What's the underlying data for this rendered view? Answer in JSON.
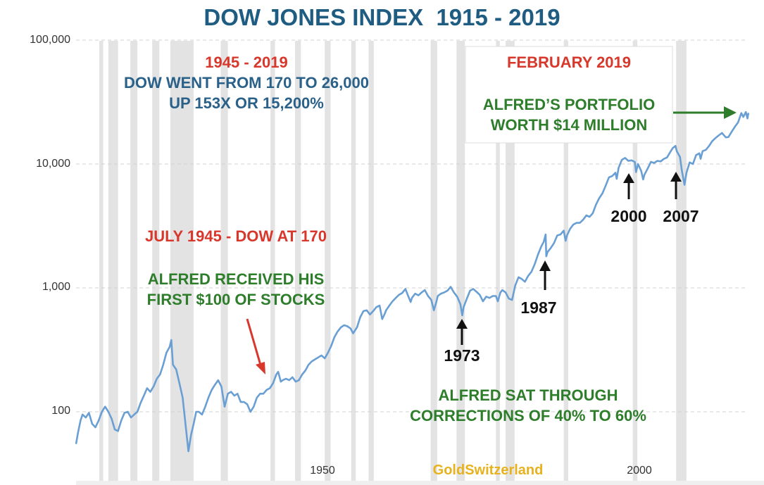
{
  "title": "DOW JONES INDEX  1915 - 2019",
  "watermark": "GoldSwitzerland",
  "colors": {
    "line": "#6a9fd4",
    "recession_band": "#e3e3e3",
    "title": "#1f5c82",
    "red": "#d8372b",
    "green": "#2d7d2b",
    "blue": "#2a6189",
    "watermark": "#e8b21e"
  },
  "annotations": {
    "period_red": "1945 - 2019",
    "period_blue_1": "DOW WENT FROM 170 TO 26,000",
    "period_blue_2": "UP 153X OR 15,200%",
    "feb_red": "FEBRUARY 2019",
    "feb_green_1": "ALFRED’S PORTFOLIO",
    "feb_green_2": "WORTH $14 MILLION",
    "july_red": "JULY 1945 - DOW AT 170",
    "alfred_green_1": "ALFRED RECEIVED HIS",
    "alfred_green_2": "FIRST $100 OF STOCKS",
    "sat_green_1": "ALFRED SAT THROUGH",
    "sat_green_2": "CORRECTIONS OF 40% TO 60%"
  },
  "event_labels": {
    "y1973": "1973",
    "y1987": "1987",
    "y2000": "2000",
    "y2007": "2007"
  },
  "chart_data": {
    "type": "line",
    "title": "DOW JONES INDEX  1915 - 2019",
    "y_scale": "log",
    "ylim": [
      45,
      100000
    ],
    "xlim": [
      1915,
      2019
    ],
    "y_tick_labels": [
      "100,000",
      "10,000",
      "1,000",
      "100"
    ],
    "y_tick_values": [
      100000,
      10000,
      1000,
      100
    ],
    "x_tick_labels": [
      "1950",
      "2000"
    ],
    "x_tick_values": [
      1950,
      2000
    ],
    "grid": "horizontal dashed",
    "recession_bands": [
      [
        1918.6,
        1919.2
      ],
      [
        1920.0,
        1921.5
      ],
      [
        1923.4,
        1924.5
      ],
      [
        1926.8,
        1927.9
      ],
      [
        1929.6,
        1933.2
      ],
      [
        1937.4,
        1938.5
      ],
      [
        1945.1,
        1945.8
      ],
      [
        1948.9,
        1949.8
      ],
      [
        1953.5,
        1954.4
      ],
      [
        1957.6,
        1958.3
      ],
      [
        1960.3,
        1961.1
      ],
      [
        1969.9,
        1970.9
      ],
      [
        1973.9,
        1975.2
      ],
      [
        1980.0,
        1980.6
      ],
      [
        1981.5,
        1982.9
      ],
      [
        1990.5,
        1991.2
      ],
      [
        2001.2,
        2001.9
      ],
      [
        2007.9,
        2009.5
      ]
    ],
    "series": [
      {
        "points": [
          [
            1915.0,
            55
          ],
          [
            1915.3,
            68
          ],
          [
            1915.7,
            85
          ],
          [
            1916.0,
            95
          ],
          [
            1916.5,
            90
          ],
          [
            1917.0,
            98
          ],
          [
            1917.5,
            80
          ],
          [
            1918.0,
            75
          ],
          [
            1918.5,
            85
          ],
          [
            1919.0,
            100
          ],
          [
            1919.5,
            110
          ],
          [
            1920.0,
            100
          ],
          [
            1920.5,
            88
          ],
          [
            1921.0,
            72
          ],
          [
            1921.5,
            70
          ],
          [
            1922.0,
            85
          ],
          [
            1922.5,
            98
          ],
          [
            1923.0,
            100
          ],
          [
            1923.5,
            90
          ],
          [
            1924.0,
            95
          ],
          [
            1924.5,
            100
          ],
          [
            1925.0,
            118
          ],
          [
            1925.5,
            135
          ],
          [
            1926.0,
            155
          ],
          [
            1926.5,
            145
          ],
          [
            1927.0,
            160
          ],
          [
            1927.5,
            185
          ],
          [
            1928.0,
            200
          ],
          [
            1928.5,
            240
          ],
          [
            1929.0,
            300
          ],
          [
            1929.5,
            335
          ],
          [
            1929.75,
            380
          ],
          [
            1930.0,
            240
          ],
          [
            1930.5,
            220
          ],
          [
            1931.0,
            170
          ],
          [
            1931.5,
            130
          ],
          [
            1932.0,
            75
          ],
          [
            1932.4,
            48
          ],
          [
            1932.8,
            65
          ],
          [
            1933.2,
            80
          ],
          [
            1933.6,
            100
          ],
          [
            1934.0,
            100
          ],
          [
            1934.5,
            95
          ],
          [
            1935.0,
            110
          ],
          [
            1935.5,
            130
          ],
          [
            1936.0,
            150
          ],
          [
            1936.5,
            165
          ],
          [
            1937.0,
            180
          ],
          [
            1937.5,
            160
          ],
          [
            1938.0,
            110
          ],
          [
            1938.5,
            140
          ],
          [
            1939.0,
            145
          ],
          [
            1939.5,
            135
          ],
          [
            1940.0,
            140
          ],
          [
            1940.5,
            120
          ],
          [
            1941.0,
            120
          ],
          [
            1941.5,
            115
          ],
          [
            1942.0,
            100
          ],
          [
            1942.5,
            110
          ],
          [
            1943.0,
            130
          ],
          [
            1943.5,
            140
          ],
          [
            1944.0,
            140
          ],
          [
            1944.5,
            150
          ],
          [
            1945.0,
            155
          ],
          [
            1945.5,
            170
          ],
          [
            1946.0,
            200
          ],
          [
            1946.3,
            210
          ],
          [
            1946.7,
            175
          ],
          [
            1947.0,
            180
          ],
          [
            1947.5,
            185
          ],
          [
            1948.0,
            180
          ],
          [
            1948.5,
            190
          ],
          [
            1949.0,
            175
          ],
          [
            1949.5,
            180
          ],
          [
            1950.0,
            200
          ],
          [
            1950.5,
            215
          ],
          [
            1951.0,
            240
          ],
          [
            1951.5,
            255
          ],
          [
            1952.0,
            265
          ],
          [
            1952.5,
            275
          ],
          [
            1953.0,
            285
          ],
          [
            1953.5,
            270
          ],
          [
            1954.0,
            300
          ],
          [
            1954.5,
            340
          ],
          [
            1955.0,
            400
          ],
          [
            1955.5,
            445
          ],
          [
            1956.0,
            480
          ],
          [
            1956.5,
            500
          ],
          [
            1957.0,
            490
          ],
          [
            1957.5,
            470
          ],
          [
            1957.9,
            430
          ],
          [
            1958.5,
            480
          ],
          [
            1959.0,
            580
          ],
          [
            1959.5,
            650
          ],
          [
            1960.0,
            660
          ],
          [
            1960.5,
            610
          ],
          [
            1961.0,
            650
          ],
          [
            1961.5,
            700
          ],
          [
            1962.0,
            720
          ],
          [
            1962.4,
            560
          ],
          [
            1962.8,
            620
          ],
          [
            1963.0,
            660
          ],
          [
            1963.5,
            720
          ],
          [
            1964.0,
            780
          ],
          [
            1964.5,
            830
          ],
          [
            1965.0,
            880
          ],
          [
            1965.5,
            910
          ],
          [
            1966.0,
            980
          ],
          [
            1966.5,
            840
          ],
          [
            1966.8,
            770
          ],
          [
            1967.0,
            830
          ],
          [
            1967.5,
            900
          ],
          [
            1968.0,
            870
          ],
          [
            1968.5,
            920
          ],
          [
            1969.0,
            960
          ],
          [
            1969.5,
            860
          ],
          [
            1970.0,
            800
          ],
          [
            1970.4,
            660
          ],
          [
            1970.8,
            780
          ],
          [
            1971.0,
            860
          ],
          [
            1971.5,
            900
          ],
          [
            1972.0,
            920
          ],
          [
            1972.5,
            950
          ],
          [
            1973.0,
            1020
          ],
          [
            1973.5,
            920
          ],
          [
            1974.0,
            850
          ],
          [
            1974.5,
            740
          ],
          [
            1974.8,
            600
          ],
          [
            1975.0,
            700
          ],
          [
            1975.5,
            820
          ],
          [
            1976.0,
            950
          ],
          [
            1976.5,
            980
          ],
          [
            1977.0,
            930
          ],
          [
            1977.5,
            880
          ],
          [
            1978.0,
            780
          ],
          [
            1978.5,
            850
          ],
          [
            1979.0,
            830
          ],
          [
            1979.5,
            860
          ],
          [
            1980.0,
            860
          ],
          [
            1980.3,
            780
          ],
          [
            1980.7,
            920
          ],
          [
            1981.0,
            960
          ],
          [
            1981.5,
            920
          ],
          [
            1982.0,
            820
          ],
          [
            1982.5,
            800
          ],
          [
            1983.0,
            1050
          ],
          [
            1983.5,
            1220
          ],
          [
            1984.0,
            1180
          ],
          [
            1984.5,
            1120
          ],
          [
            1985.0,
            1250
          ],
          [
            1985.5,
            1350
          ],
          [
            1986.0,
            1550
          ],
          [
            1986.5,
            1850
          ],
          [
            1987.0,
            2150
          ],
          [
            1987.4,
            2350
          ],
          [
            1987.7,
            2700
          ],
          [
            1987.8,
            1800
          ],
          [
            1988.0,
            1950
          ],
          [
            1988.5,
            2100
          ],
          [
            1989.0,
            2300
          ],
          [
            1989.5,
            2650
          ],
          [
            1990.0,
            2700
          ],
          [
            1990.5,
            2900
          ],
          [
            1990.8,
            2400
          ],
          [
            1991.0,
            2650
          ],
          [
            1991.5,
            3000
          ],
          [
            1992.0,
            3250
          ],
          [
            1992.5,
            3350
          ],
          [
            1993.0,
            3350
          ],
          [
            1993.5,
            3550
          ],
          [
            1994.0,
            3850
          ],
          [
            1994.5,
            3750
          ],
          [
            1995.0,
            4000
          ],
          [
            1995.5,
            4700
          ],
          [
            1996.0,
            5300
          ],
          [
            1996.5,
            5800
          ],
          [
            1997.0,
            6700
          ],
          [
            1997.5,
            7800
          ],
          [
            1998.0,
            8000
          ],
          [
            1998.5,
            8500
          ],
          [
            1998.7,
            7600
          ],
          [
            1999.0,
            9300
          ],
          [
            1999.5,
            10800
          ],
          [
            2000.0,
            11200
          ],
          [
            2000.5,
            10600
          ],
          [
            2001.0,
            10700
          ],
          [
            2001.5,
            10400
          ],
          [
            2001.7,
            8600
          ],
          [
            2002.0,
            10000
          ],
          [
            2002.5,
            8800
          ],
          [
            2002.8,
            7500
          ],
          [
            2003.0,
            8200
          ],
          [
            2003.5,
            9200
          ],
          [
            2004.0,
            10400
          ],
          [
            2004.5,
            10200
          ],
          [
            2005.0,
            10600
          ],
          [
            2005.5,
            10500
          ],
          [
            2006.0,
            11000
          ],
          [
            2006.5,
            11300
          ],
          [
            2007.0,
            12500
          ],
          [
            2007.4,
            13500
          ],
          [
            2007.8,
            14000
          ],
          [
            2008.0,
            12700
          ],
          [
            2008.5,
            11400
          ],
          [
            2008.8,
            8800
          ],
          [
            2009.2,
            6800
          ],
          [
            2009.5,
            8500
          ],
          [
            2010.0,
            10300
          ],
          [
            2010.5,
            10000
          ],
          [
            2011.0,
            11800
          ],
          [
            2011.5,
            12200
          ],
          [
            2011.7,
            11000
          ],
          [
            2012.0,
            12700
          ],
          [
            2012.5,
            13000
          ],
          [
            2013.0,
            14000
          ],
          [
            2013.5,
            15300
          ],
          [
            2014.0,
            16200
          ],
          [
            2014.5,
            17000
          ],
          [
            2015.0,
            17800
          ],
          [
            2015.6,
            16400
          ],
          [
            2016.0,
            16500
          ],
          [
            2016.5,
            18200
          ],
          [
            2017.0,
            20000
          ],
          [
            2017.5,
            21700
          ],
          [
            2018.0,
            25800
          ],
          [
            2018.3,
            24000
          ],
          [
            2018.7,
            26300
          ],
          [
            2018.95,
            23300
          ],
          [
            2019.1,
            25900
          ]
        ]
      }
    ]
  }
}
